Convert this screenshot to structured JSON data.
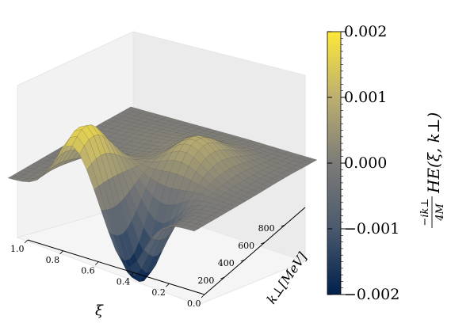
{
  "chart_data": {
    "type": "surface3d",
    "title": "",
    "xlabel": "ξ",
    "ylabel": "k⊥[MeV]",
    "zlabel": "",
    "xlim": [
      1.0,
      0.0
    ],
    "ylim": [
      0,
      1000
    ],
    "x_ticks": [
      "1.0",
      "0.8",
      "0.6",
      "0.4",
      "0.2",
      "0.0"
    ],
    "y_ticks": [
      "200",
      "400",
      "600",
      "800"
    ],
    "colormap": "cividis",
    "colorbar": {
      "label_main": "HE(ξ, k⊥)",
      "label_num": "−ik⊥",
      "label_den": "4M",
      "ticks": [
        "0.002",
        "0.001",
        "0.000",
        "−0.001",
        "−0.002"
      ],
      "range": [
        -0.002,
        0.002
      ]
    },
    "surface_summary": {
      "features": [
        {
          "kind": "peak",
          "xi": 0.65,
          "k_perp": 120,
          "value": 0.0018
        },
        {
          "kind": "peak",
          "xi": 0.35,
          "k_perp": 550,
          "value": 0.0009
        },
        {
          "kind": "trough",
          "xi": 0.35,
          "k_perp": 120,
          "value": -0.002
        }
      ]
    }
  }
}
